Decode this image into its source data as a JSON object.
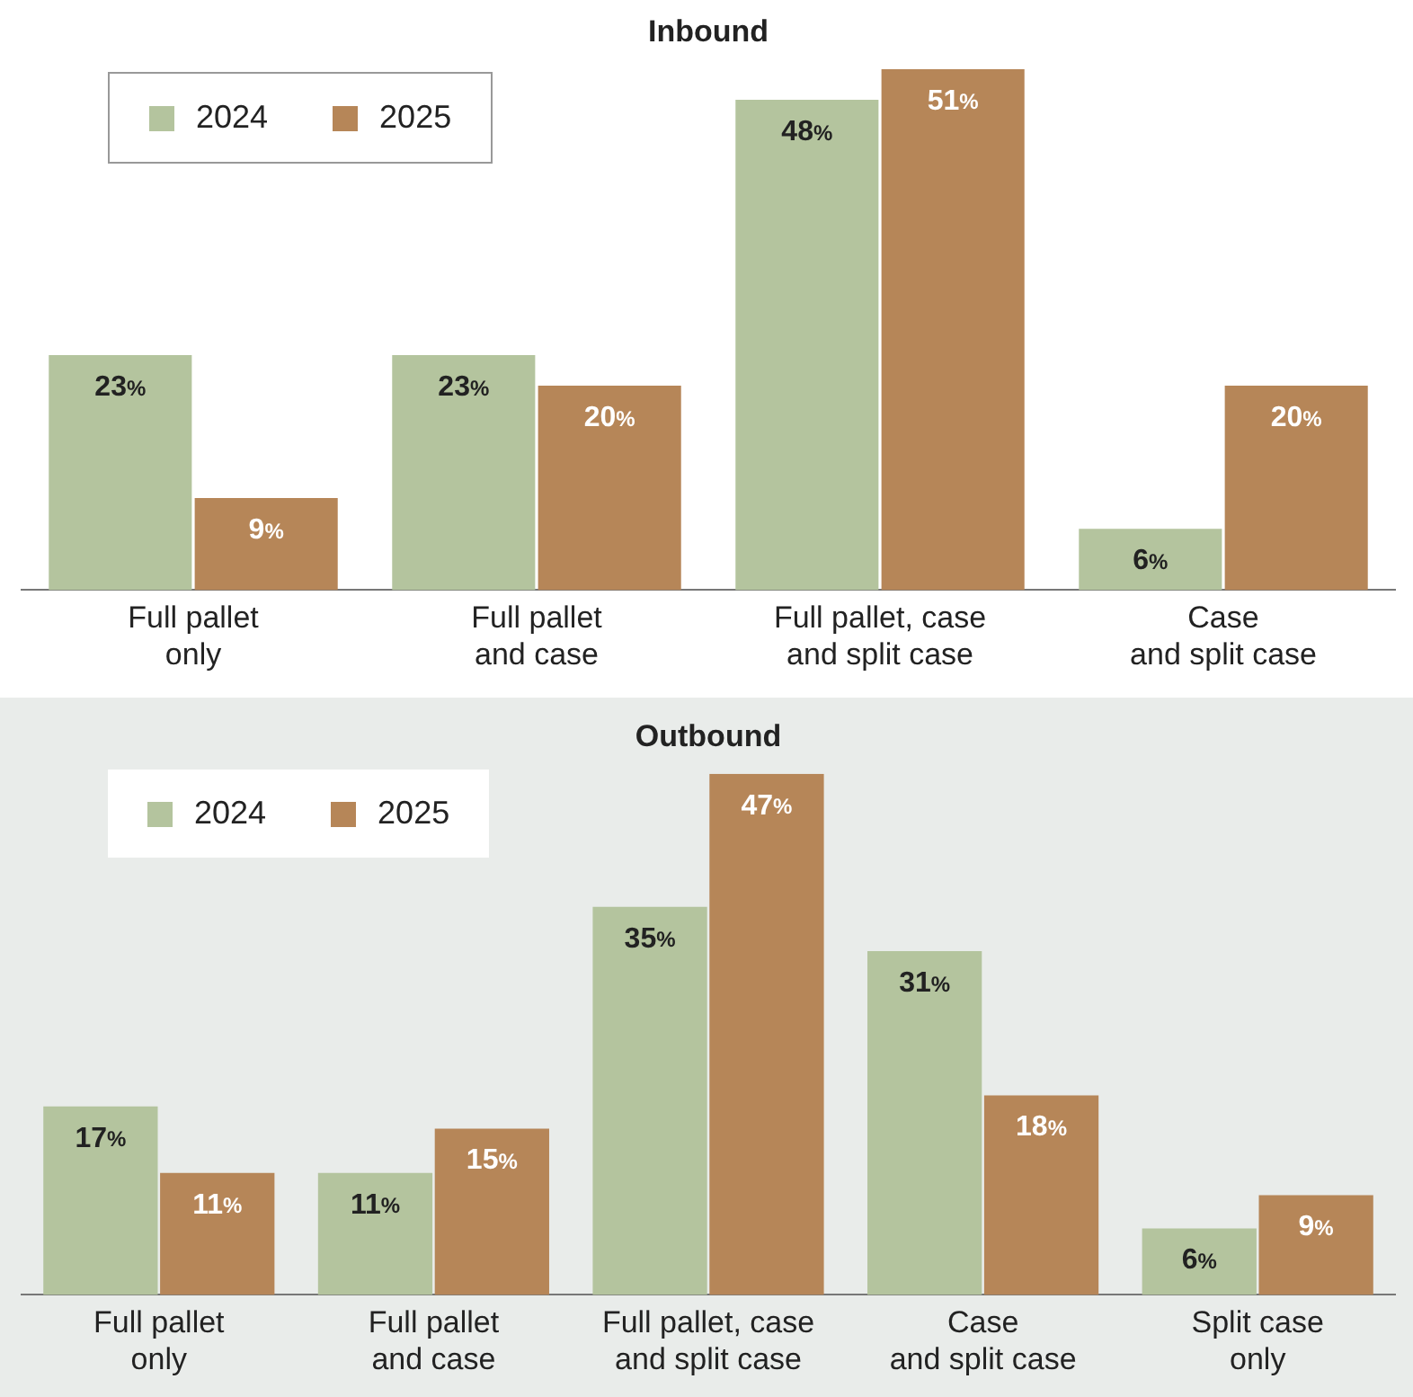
{
  "chart_data": [
    {
      "type": "bar",
      "title": "Inbound",
      "categories": [
        "Full pallet\nonly",
        "Full pallet\nand case",
        "Full pallet, case\nand split case",
        "Case\nand split case"
      ],
      "series": [
        {
          "name": "2024",
          "color": "#b4c49e",
          "values": [
            23,
            23,
            48,
            6
          ],
          "value_labels": [
            "23%",
            "23%",
            "48%",
            "6%"
          ]
        },
        {
          "name": "2025",
          "color": "#b68658",
          "values": [
            9,
            20,
            51,
            20
          ],
          "value_labels": [
            "9%",
            "20%",
            "51%",
            "20%"
          ]
        }
      ],
      "legend": "top left",
      "grid": false
    },
    {
      "type": "bar",
      "title": "Outbound",
      "categories": [
        "Full pallet\nonly",
        "Full pallet\nand case",
        "Full pallet, case\nand split case",
        "Case\nand split case",
        "Split case\nonly"
      ],
      "series": [
        {
          "name": "2024",
          "color": "#b4c49e",
          "values": [
            17,
            11,
            35,
            31,
            6
          ],
          "value_labels": [
            "17%",
            "11%",
            "35%",
            "31%",
            "6%"
          ]
        },
        {
          "name": "2025",
          "color": "#b68658",
          "values": [
            11,
            15,
            47,
            18,
            9
          ],
          "value_labels": [
            "11%",
            "15%",
            "47%",
            "18%",
            "9%"
          ]
        }
      ],
      "legend": "top left",
      "grid": false
    }
  ]
}
